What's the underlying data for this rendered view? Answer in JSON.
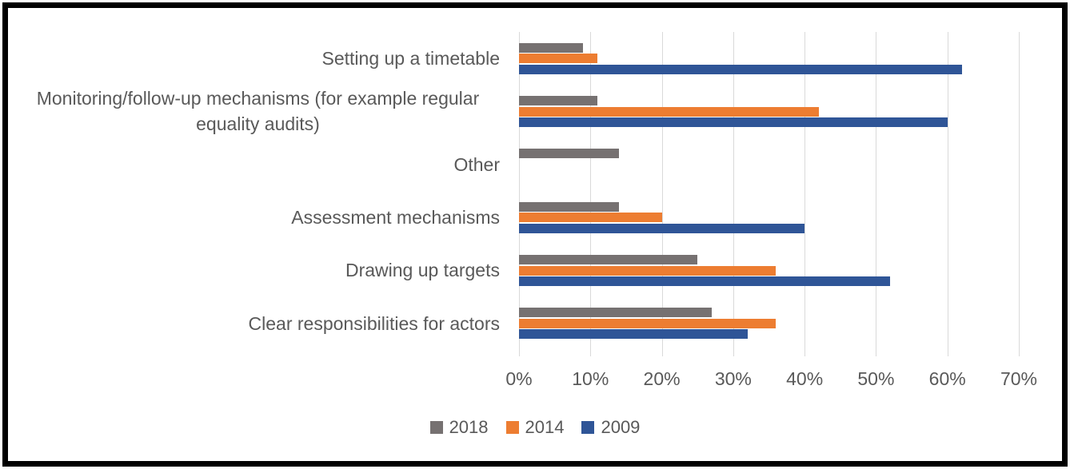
{
  "chart_data": {
    "type": "bar",
    "orientation": "horizontal",
    "title": "",
    "xlabel": "",
    "ylabel": "",
    "categories": [
      "Setting up a timetable",
      "Monitoring/follow-up mechanisms (for example regular equality audits)",
      "Other",
      "Assessment mechanisms",
      "Drawing up targets",
      "Clear responsibilities for actors"
    ],
    "series": [
      {
        "name": "2018",
        "color": "#767171",
        "values": [
          9,
          11,
          14,
          14,
          25,
          27
        ]
      },
      {
        "name": "2014",
        "color": "#ED7D31",
        "values": [
          11,
          42,
          0,
          20,
          36,
          36
        ]
      },
      {
        "name": "2009",
        "color": "#2F5597",
        "values": [
          62,
          60,
          0,
          40,
          52,
          32
        ]
      }
    ],
    "x_axis": {
      "tick_labels": [
        "0%",
        "10%",
        "20%",
        "30%",
        "40%",
        "50%",
        "60%",
        "70%"
      ],
      "min": 0,
      "max": 70,
      "unit": "%"
    },
    "grid": "vertical",
    "legend": {
      "position": "bottom",
      "entries": [
        "2018",
        "2014",
        "2009"
      ]
    }
  },
  "colors": {
    "background": "#FFFFFF",
    "frame_border": "#000000",
    "gridline": "#D9D9D9",
    "text": "#595959"
  }
}
